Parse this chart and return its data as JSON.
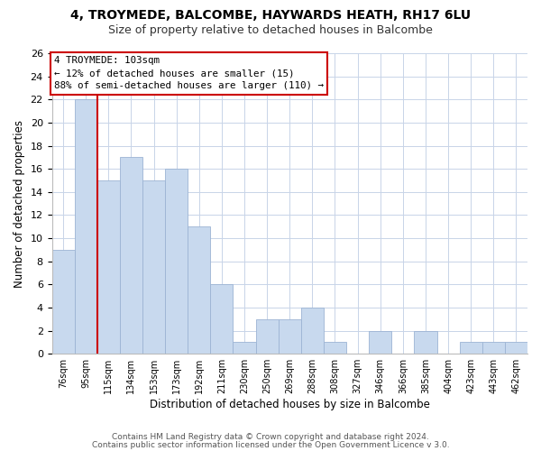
{
  "title": "4, TROYMEDE, BALCOMBE, HAYWARDS HEATH, RH17 6LU",
  "subtitle": "Size of property relative to detached houses in Balcombe",
  "xlabel": "Distribution of detached houses by size in Balcombe",
  "ylabel": "Number of detached properties",
  "footer_line1": "Contains HM Land Registry data © Crown copyright and database right 2024.",
  "footer_line2": "Contains public sector information licensed under the Open Government Licence v 3.0.",
  "bin_labels": [
    "76sqm",
    "95sqm",
    "115sqm",
    "134sqm",
    "153sqm",
    "173sqm",
    "192sqm",
    "211sqm",
    "230sqm",
    "250sqm",
    "269sqm",
    "288sqm",
    "308sqm",
    "327sqm",
    "346sqm",
    "366sqm",
    "385sqm",
    "404sqm",
    "423sqm",
    "443sqm",
    "462sqm"
  ],
  "bar_heights": [
    9,
    22,
    15,
    17,
    15,
    16,
    11,
    6,
    1,
    3,
    3,
    4,
    1,
    0,
    2,
    0,
    2,
    0,
    1,
    1,
    1
  ],
  "bar_color": "#c8d9ee",
  "bar_edge_color": "#9cb4d4",
  "vline_color": "#cc0000",
  "annotation_text": "4 TROYMEDE: 103sqm\n← 12% of detached houses are smaller (15)\n88% of semi-detached houses are larger (110) →",
  "annotation_box_color": "white",
  "annotation_box_edge": "#cc0000",
  "ylim": [
    0,
    26
  ],
  "yticks": [
    0,
    2,
    4,
    6,
    8,
    10,
    12,
    14,
    16,
    18,
    20,
    22,
    24,
    26
  ],
  "grid_color": "#c8d4e8",
  "background_color": "white",
  "title_fontsize": 10,
  "subtitle_fontsize": 9
}
